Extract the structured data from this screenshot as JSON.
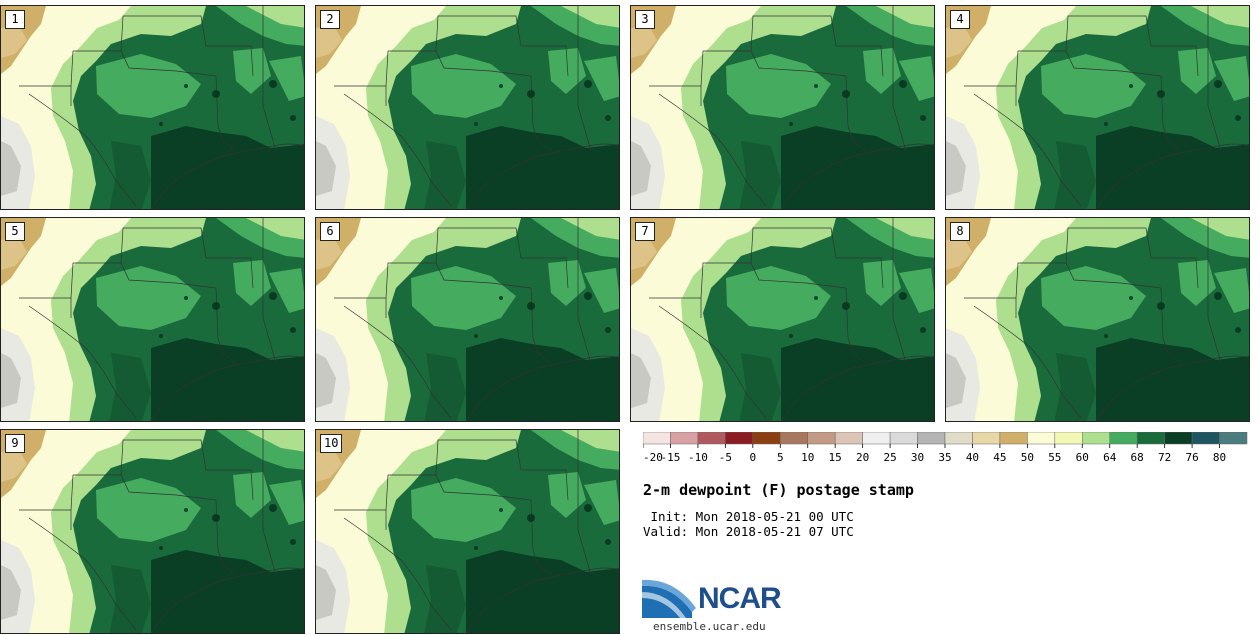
{
  "panels": [
    "1",
    "2",
    "3",
    "4",
    "5",
    "6",
    "7",
    "8",
    "9",
    "10"
  ],
  "legend": {
    "colors": [
      "#f4e4e4",
      "#d7a1a4",
      "#b05a60",
      "#8c1c24",
      "#8c4012",
      "#a8785e",
      "#c29a86",
      "#dcc4b6",
      "#efefef",
      "#dadada",
      "#b4b4b4",
      "#e0dcc8",
      "#e8d8a8",
      "#d0b068",
      "#fbfbd7",
      "#f2f8b4",
      "#addf8e",
      "#45ab5f",
      "#1a6b3c",
      "#0a3e25",
      "#1e5560",
      "#4a7c80"
    ],
    "ticks": [
      "-20",
      "-15",
      "-10",
      "-5",
      "0",
      "5",
      "10",
      "15",
      "20",
      "25",
      "30",
      "35",
      "40",
      "45",
      "50",
      "55",
      "60",
      "64",
      "68",
      "72",
      "76",
      "80"
    ]
  },
  "title": "2-m dewpoint (F) postage stamp",
  "init_line": " Init: Mon 2018-05-21 00 UTC",
  "valid_line": "Valid: Mon 2018-05-21 07 UTC",
  "logo": {
    "name": "NCAR",
    "url": "ensemble.ucar.edu"
  }
}
